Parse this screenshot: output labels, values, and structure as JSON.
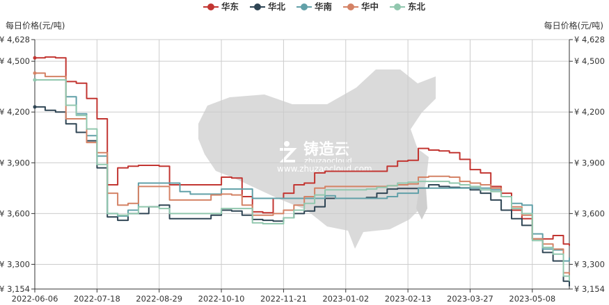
{
  "chart_data": {
    "type": "line",
    "title": "",
    "ylabel_left": "每日价格(元/吨)",
    "ylabel_right": "每日价格(元/吨)",
    "ylim": [
      3154,
      4628
    ],
    "yticks": [
      4628,
      4500,
      4200,
      3900,
      3600,
      3300,
      3154
    ],
    "ytick_labels": [
      "¥ 4,628",
      "¥ 4,500",
      "¥ 4,200",
      "¥ 3,900",
      "¥ 3,600",
      "¥ 3,300",
      "¥ 3,154"
    ],
    "xlim": [
      "2022-06-06",
      "2023-06-02"
    ],
    "xtick_labels": [
      "2022-06-06",
      "2022-07-18",
      "2022-08-29",
      "2022-10-10",
      "2022-11-21",
      "2023-01-02",
      "2023-02-13",
      "2023-03-27",
      "2023-05-08"
    ],
    "grid": true,
    "legend_position": "top-right",
    "x": [
      "2022-06-06",
      "2022-06-13",
      "2022-06-20",
      "2022-06-27",
      "2022-07-04",
      "2022-07-11",
      "2022-07-18",
      "2022-07-25",
      "2022-08-01",
      "2022-08-08",
      "2022-08-15",
      "2022-08-22",
      "2022-08-29",
      "2022-09-05",
      "2022-09-12",
      "2022-09-19",
      "2022-09-26",
      "2022-10-03",
      "2022-10-10",
      "2022-10-17",
      "2022-10-24",
      "2022-10-31",
      "2022-11-07",
      "2022-11-14",
      "2022-11-21",
      "2022-11-28",
      "2022-12-05",
      "2022-12-12",
      "2022-12-19",
      "2022-12-26",
      "2023-01-02",
      "2023-01-09",
      "2023-01-16",
      "2023-01-23",
      "2023-01-30",
      "2023-02-06",
      "2023-02-13",
      "2023-02-20",
      "2023-02-27",
      "2023-03-06",
      "2023-03-13",
      "2023-03-20",
      "2023-03-27",
      "2023-04-03",
      "2023-04-10",
      "2023-04-17",
      "2023-04-24",
      "2023-05-01",
      "2023-05-08",
      "2023-05-15",
      "2023-05-22",
      "2023-05-29",
      "2023-06-02"
    ],
    "series": [
      {
        "name": "华东",
        "color": "#c23531",
        "values": [
          4520,
          4525,
          4520,
          4380,
          4370,
          4280,
          4160,
          3770,
          3870,
          3880,
          3885,
          3885,
          3880,
          3770,
          3770,
          3770,
          3770,
          3770,
          3815,
          3810,
          3700,
          3610,
          3605,
          3690,
          3720,
          3770,
          3780,
          3840,
          3850,
          3850,
          3850,
          3850,
          3850,
          3850,
          3880,
          3910,
          3915,
          3985,
          3975,
          3970,
          3960,
          3920,
          3860,
          3840,
          3760,
          3720,
          3620,
          3570,
          3450,
          3450,
          3470,
          3420,
          3410
        ]
      },
      {
        "name": "华北",
        "color": "#2f4554",
        "values": [
          4230,
          4210,
          4200,
          4130,
          4080,
          4030,
          3870,
          3580,
          3560,
          3600,
          3600,
          3640,
          3650,
          3570,
          3570,
          3570,
          3570,
          3590,
          3620,
          3615,
          3590,
          3565,
          3560,
          3555,
          3575,
          3600,
          3615,
          3640,
          3690,
          3690,
          3690,
          3690,
          3695,
          3720,
          3745,
          3748,
          3748,
          3750,
          3770,
          3760,
          3755,
          3752,
          3740,
          3720,
          3680,
          3620,
          3570,
          3530,
          3450,
          3370,
          3320,
          3200,
          3170
        ]
      },
      {
        "name": "华南",
        "color": "#61a0a8",
        "values": [
          4390,
          4390,
          4390,
          4290,
          4190,
          4060,
          3940,
          3600,
          3585,
          3620,
          3780,
          3780,
          3780,
          3780,
          3730,
          3715,
          3715,
          3715,
          3745,
          3745,
          3745,
          3690,
          3690,
          3690,
          3690,
          3690,
          3690,
          3690,
          3705,
          3690,
          3690,
          3690,
          3690,
          3690,
          3700,
          3720,
          3720,
          3750,
          3750,
          3750,
          3750,
          3750,
          3750,
          3750,
          3740,
          3700,
          3660,
          3650,
          3480,
          3390,
          3385,
          3320,
          3340
        ]
      },
      {
        "name": "华中",
        "color": "#d48265",
        "values": [
          4430,
          4410,
          4410,
          4160,
          4160,
          4020,
          3960,
          3720,
          3650,
          3660,
          3760,
          3760,
          3760,
          3680,
          3680,
          3680,
          3680,
          3710,
          3715,
          3710,
          3650,
          3590,
          3590,
          3600,
          3620,
          3650,
          3700,
          3750,
          3760,
          3760,
          3760,
          3760,
          3760,
          3760,
          3765,
          3770,
          3775,
          3815,
          3820,
          3820,
          3815,
          3790,
          3780,
          3770,
          3750,
          3700,
          3640,
          3590,
          3450,
          3420,
          3390,
          3250,
          3240
        ]
      },
      {
        "name": "东北",
        "color": "#91c7ae",
        "values": [
          4390,
          4390,
          4390,
          4240,
          4180,
          4100,
          3890,
          3600,
          3590,
          3600,
          3640,
          3640,
          3630,
          3600,
          3600,
          3600,
          3600,
          3600,
          3630,
          3630,
          3630,
          3545,
          3540,
          3540,
          3575,
          3620,
          3660,
          3710,
          3740,
          3740,
          3740,
          3740,
          3745,
          3755,
          3765,
          3780,
          3785,
          3790,
          3790,
          3790,
          3780,
          3770,
          3760,
          3740,
          3730,
          3700,
          3630,
          3600,
          3440,
          3400,
          3360,
          3230,
          3200
        ]
      }
    ]
  },
  "watermark": {
    "brand": "铸造云",
    "brand_latin": "zhuzaocloud",
    "url": "www.zhuzaocloud.com"
  }
}
